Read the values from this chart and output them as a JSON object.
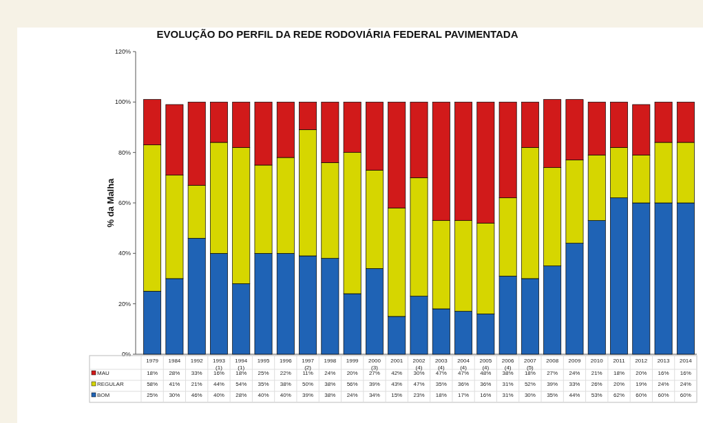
{
  "chart_data": {
    "type": "bar",
    "title": "EVOLUÇÃO DO PERFIL DA REDE RODOVIÁRIA FEDERAL PAVIMENTADA",
    "ylabel": "% da Malha",
    "categories": [
      "1979",
      "1984",
      "1992",
      "1993 (1)",
      "1994 (1)",
      "1995",
      "1996",
      "1997 (2)",
      "1998",
      "1999",
      "2000 (3)",
      "2001",
      "2002(4)",
      "2003(4)",
      "2004(4)",
      "2005(4)",
      "2006(4)",
      "2007(5)",
      "2008",
      "2009",
      "2010",
      "2011",
      "2012",
      "2013",
      "2014"
    ],
    "stacked": true,
    "legend": "bottom",
    "grid": false,
    "ylim": [
      0,
      120
    ],
    "yticks": [
      {
        "value": 0,
        "label": "0%"
      },
      {
        "value": 20,
        "label": "20%"
      },
      {
        "value": 40,
        "label": "40%"
      },
      {
        "value": 60,
        "label": "60%"
      },
      {
        "value": 80,
        "label": "80%"
      },
      {
        "value": 100,
        "label": "100%"
      },
      {
        "value": 120,
        "label": "120%"
      }
    ],
    "series": [
      {
        "name": "BOM",
        "color": "#1f63b5",
        "values": [
          25,
          30,
          46,
          40,
          28,
          40,
          40,
          39,
          38,
          24,
          34,
          15,
          23,
          18,
          17,
          16,
          31,
          30,
          35,
          44,
          53,
          62,
          60,
          60,
          60
        ],
        "value_labels": [
          "25%",
          "30%",
          "46%",
          "40%",
          "28%",
          "40%",
          "40%",
          "39%",
          "38%",
          "24%",
          "34%",
          "15%",
          "23%",
          "18%",
          "17%",
          "16%",
          "31%",
          "30%",
          "35%",
          "44%",
          "53%",
          "62%",
          "60%",
          "60%",
          "60%"
        ]
      },
      {
        "name": "REGULAR",
        "color": "#d6d600",
        "values": [
          58,
          41,
          21,
          44,
          54,
          35,
          38,
          50,
          38,
          56,
          39,
          43,
          47,
          35,
          36,
          36,
          31,
          52,
          39,
          33,
          26,
          20,
          19,
          24,
          24
        ],
        "value_labels": [
          "58%",
          "41%",
          "21%",
          "44%",
          "54%",
          "35%",
          "38%",
          "50%",
          "38%",
          "56%",
          "39%",
          "43%",
          "47%",
          "35%",
          "36%",
          "36%",
          "31%",
          "52%",
          "39%",
          "33%",
          "26%",
          "20%",
          "19%",
          "24%",
          "24%"
        ]
      },
      {
        "name": "MAU",
        "color": "#d11a1a",
        "values": [
          18,
          28,
          33,
          16,
          18,
          25,
          22,
          11,
          24,
          20,
          27,
          42,
          30,
          47,
          47,
          48,
          38,
          18,
          27,
          24,
          21,
          18,
          20,
          16,
          16
        ],
        "value_labels": [
          "18%",
          "28%",
          "33%",
          "16%",
          "18%",
          "25%",
          "22%",
          "11%",
          "24%",
          "20%",
          "27%",
          "42%",
          "30%",
          "47%",
          "47%",
          "48%",
          "38%",
          "18%",
          "27%",
          "24%",
          "21%",
          "18%",
          "20%",
          "16%",
          "16%"
        ]
      }
    ]
  }
}
